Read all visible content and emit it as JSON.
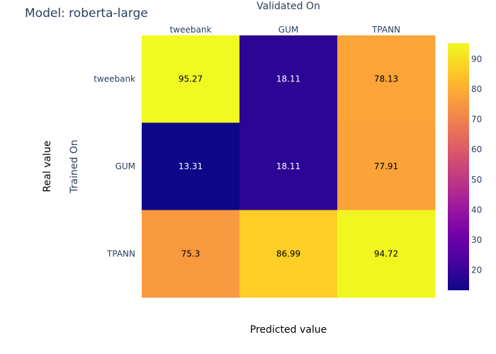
{
  "chart_data": {
    "type": "heatmap",
    "title": "Model: roberta-large",
    "x_axis_title": "Validated On",
    "y_axis_title": "Trained On",
    "outer_x_label": "Predicted value",
    "outer_y_label": "Real value",
    "x_categories": [
      "tweebank",
      "GUM",
      "TPANN"
    ],
    "y_categories": [
      "tweebank",
      "GUM",
      "TPANN"
    ],
    "z": [
      [
        95.27,
        18.11,
        78.13
      ],
      [
        13.31,
        18.11,
        77.91
      ],
      [
        75.3,
        86.99,
        94.72
      ]
    ],
    "z_labels": [
      [
        "95.27",
        "18.11",
        "78.13"
      ],
      [
        "13.31",
        "18.11",
        "77.91"
      ],
      [
        "75.3",
        "86.99",
        "94.72"
      ]
    ],
    "zmin": 13.31,
    "zmax": 95.27,
    "colorscale": "plasma",
    "colorbar_ticks": [
      20,
      30,
      40,
      50,
      60,
      70,
      80,
      90
    ]
  }
}
